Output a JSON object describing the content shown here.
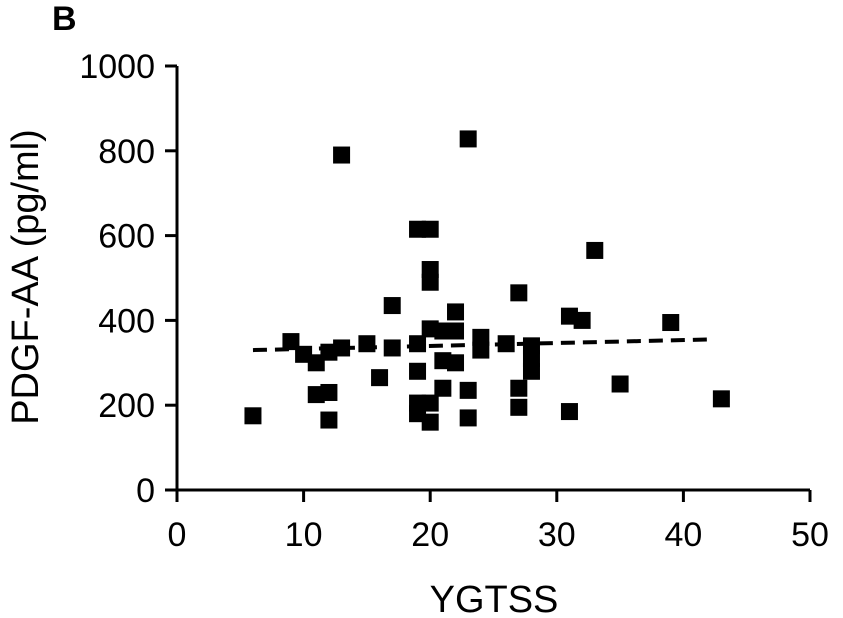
{
  "chart_data": {
    "type": "scatter",
    "panel_label": "B",
    "xlabel": "YGTSS",
    "ylabel": "PDGF-AA (pg/ml)",
    "xlim": [
      0,
      50
    ],
    "ylim": [
      0,
      1000
    ],
    "x_ticks": [
      0,
      10,
      20,
      30,
      40,
      50
    ],
    "y_ticks": [
      0,
      200,
      400,
      600,
      800,
      1000
    ],
    "x_tick_labels": [
      "0",
      "10",
      "20",
      "30",
      "40",
      "50"
    ],
    "y_tick_labels": [
      "0",
      "200",
      "400",
      "600",
      "800",
      "1000"
    ],
    "grid": false,
    "marker_color": "#000000",
    "points": [
      {
        "x": 6,
        "y": 175
      },
      {
        "x": 9,
        "y": 350
      },
      {
        "x": 10,
        "y": 320
      },
      {
        "x": 11,
        "y": 300
      },
      {
        "x": 11,
        "y": 225
      },
      {
        "x": 12,
        "y": 230
      },
      {
        "x": 12,
        "y": 165
      },
      {
        "x": 12,
        "y": 325
      },
      {
        "x": 13,
        "y": 335
      },
      {
        "x": 13,
        "y": 790
      },
      {
        "x": 15,
        "y": 345
      },
      {
        "x": 16,
        "y": 265
      },
      {
        "x": 17,
        "y": 335
      },
      {
        "x": 17,
        "y": 435
      },
      {
        "x": 19,
        "y": 615
      },
      {
        "x": 19,
        "y": 345
      },
      {
        "x": 19,
        "y": 280
      },
      {
        "x": 19,
        "y": 205
      },
      {
        "x": 19,
        "y": 180
      },
      {
        "x": 20,
        "y": 615
      },
      {
        "x": 20,
        "y": 520
      },
      {
        "x": 20,
        "y": 490
      },
      {
        "x": 20,
        "y": 380
      },
      {
        "x": 20,
        "y": 205
      },
      {
        "x": 20,
        "y": 160
      },
      {
        "x": 21,
        "y": 375
      },
      {
        "x": 21,
        "y": 305
      },
      {
        "x": 21,
        "y": 240
      },
      {
        "x": 22,
        "y": 420
      },
      {
        "x": 22,
        "y": 375
      },
      {
        "x": 22,
        "y": 300
      },
      {
        "x": 23,
        "y": 828
      },
      {
        "x": 23,
        "y": 235
      },
      {
        "x": 23,
        "y": 170
      },
      {
        "x": 24,
        "y": 360
      },
      {
        "x": 24,
        "y": 330
      },
      {
        "x": 26,
        "y": 345
      },
      {
        "x": 27,
        "y": 465
      },
      {
        "x": 27,
        "y": 240
      },
      {
        "x": 27,
        "y": 195
      },
      {
        "x": 28,
        "y": 340
      },
      {
        "x": 28,
        "y": 310
      },
      {
        "x": 28,
        "y": 280
      },
      {
        "x": 31,
        "y": 410
      },
      {
        "x": 31,
        "y": 185
      },
      {
        "x": 32,
        "y": 400
      },
      {
        "x": 33,
        "y": 565
      },
      {
        "x": 35,
        "y": 250
      },
      {
        "x": 39,
        "y": 395
      },
      {
        "x": 43,
        "y": 215
      }
    ],
    "trendline": {
      "style": "dashed",
      "x": [
        6,
        42
      ],
      "y": [
        330,
        355
      ]
    }
  }
}
